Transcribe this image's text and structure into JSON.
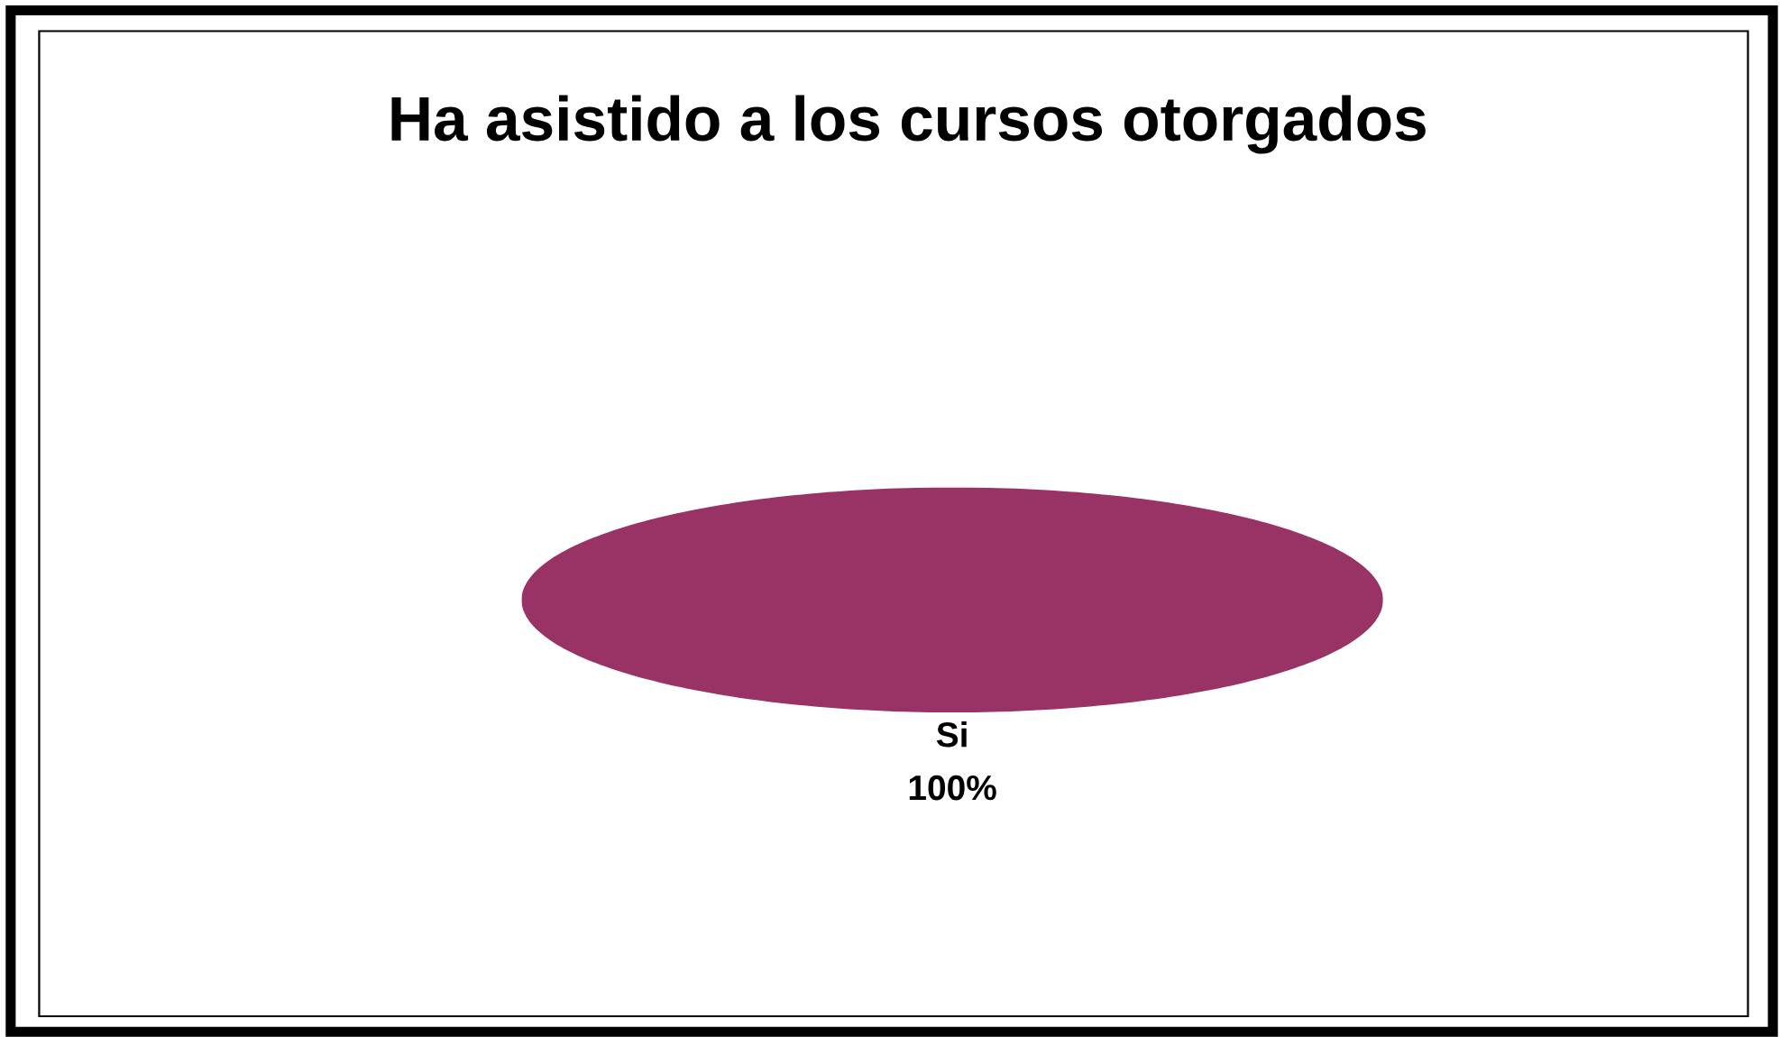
{
  "chart_data": {
    "type": "pie",
    "title": "Ha asistido a los cursos otorgados",
    "categories": [
      "Si"
    ],
    "values": [
      100
    ],
    "colors": [
      "#993366"
    ],
    "value_labels": [
      "100%"
    ],
    "legend": false
  }
}
